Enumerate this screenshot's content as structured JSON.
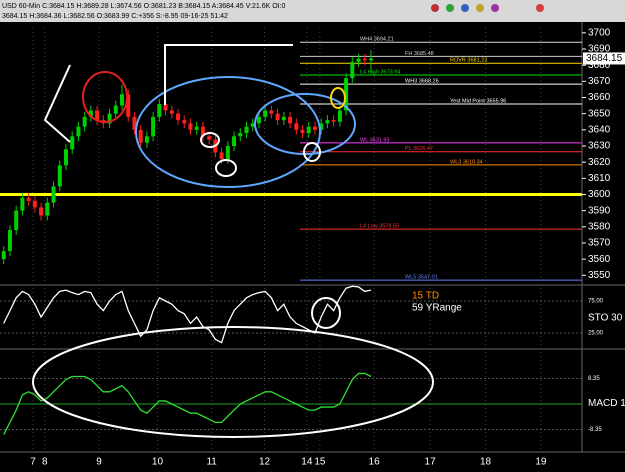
{
  "header": {
    "line1": "USD 60-Min  C:3684.15 H:3689.28 L:3674.56 O:3681.23 B:3684.15 A:3684.45 V:21.6K OI:0",
    "line2": "3684.15 H:3684.36 L:3682.56 O:3683.99 C:+356 S:-8.95 09-16-25 51:42"
  },
  "chart_data": [
    {
      "type": "candlestick",
      "open": [
        3560,
        3565,
        3578,
        3590,
        3598,
        3596,
        3592,
        3587,
        3595,
        3605,
        3618,
        3628,
        3636,
        3642,
        3648,
        3652,
        3646,
        3644,
        3650,
        3655,
        3662,
        3648,
        3640,
        3632,
        3636,
        3648,
        3656,
        3652,
        3650,
        3646,
        3644,
        3640,
        3642,
        3636,
        3634,
        3626,
        3622,
        3630,
        3636,
        3638,
        3642,
        3644,
        3648,
        3652,
        3650,
        3646,
        3648,
        3644,
        3640,
        3638,
        3642,
        3640,
        3644,
        3646,
        3645,
        3652,
        3672,
        3682,
        3684,
        3683
      ],
      "high": [
        3568,
        3581,
        3593,
        3601,
        3601,
        3599,
        3595,
        3598,
        3608,
        3621,
        3631,
        3639,
        3645,
        3651,
        3655,
        3655,
        3649,
        3653,
        3658,
        3668,
        3665,
        3651,
        3643,
        3639,
        3651,
        3659,
        3659,
        3655,
        3653,
        3649,
        3647,
        3645,
        3645,
        3639,
        3637,
        3629,
        3633,
        3639,
        3641,
        3645,
        3647,
        3651,
        3655,
        3655,
        3653,
        3651,
        3651,
        3647,
        3643,
        3645,
        3645,
        3647,
        3649,
        3649,
        3655,
        3675,
        3685,
        3687,
        3687,
        3689.28
      ],
      "low": [
        3557,
        3562,
        3575,
        3587,
        3593,
        3589,
        3584,
        3584,
        3592,
        3602,
        3615,
        3625,
        3633,
        3639,
        3645,
        3643,
        3641,
        3641,
        3647,
        3652,
        3645,
        3637,
        3629,
        3629,
        3633,
        3645,
        3649,
        3647,
        3643,
        3641,
        3637,
        3637,
        3633,
        3631,
        3623,
        3619,
        3619,
        3627,
        3633,
        3635,
        3639,
        3641,
        3645,
        3647,
        3643,
        3643,
        3641,
        3637,
        3635,
        3635,
        3637,
        3637,
        3641,
        3642,
        3642,
        3649,
        3669,
        3679,
        3680,
        3674.56
      ],
      "close": [
        3565,
        3578,
        3590,
        3598,
        3596,
        3592,
        3587,
        3595,
        3605,
        3618,
        3628,
        3636,
        3642,
        3648,
        3652,
        3646,
        3644,
        3650,
        3655,
        3662,
        3648,
        3640,
        3632,
        3636,
        3648,
        3656,
        3652,
        3650,
        3646,
        3644,
        3640,
        3642,
        3636,
        3634,
        3626,
        3622,
        3630,
        3636,
        3638,
        3642,
        3644,
        3648,
        3652,
        3650,
        3646,
        3648,
        3644,
        3640,
        3638,
        3642,
        3640,
        3644,
        3646,
        3645,
        3652,
        3672,
        3682,
        3684,
        3683,
        3684.15
      ],
      "up_color": "#00d000",
      "down_color": "#ff2020",
      "xlim": [
        -0.6,
        92.9
      ],
      "xticks": [
        {
          "value": 4.7,
          "label": "7"
        },
        {
          "value": 6.6,
          "label": "8"
        },
        {
          "value": 15.3,
          "label": "9"
        },
        {
          "value": 24.7,
          "label": "10"
        },
        {
          "value": 33.4,
          "label": "11"
        },
        {
          "value": 41.9,
          "label": "12"
        },
        {
          "value": 48.7,
          "label": "14"
        },
        {
          "value": 50.8,
          "label": "15"
        },
        {
          "value": 59.5,
          "label": "16"
        },
        {
          "value": 68.5,
          "label": "17"
        },
        {
          "value": 77.4,
          "label": "18"
        },
        {
          "value": 86.3,
          "label": "19"
        }
      ],
      "ylim": [
        3544,
        3703
      ],
      "yticks": [
        3550,
        3560,
        3570,
        3580,
        3590,
        3600,
        3610,
        3620,
        3630,
        3640,
        3650,
        3660,
        3670,
        3680,
        3690,
        3700
      ],
      "grid": true,
      "support_line": {
        "value": 3600,
        "color": "#ffff00"
      },
      "levels": [
        {
          "label": "WH4 3694.21",
          "value": 3694.21,
          "color": "#dddddd"
        },
        {
          "label": "FH 3685.48",
          "value": 3685.48,
          "color": "#cccccc"
        },
        {
          "label": "ROVR 3681.23",
          "value": 3681.23,
          "color": "#ffd700"
        },
        {
          "label": "L4 High 3673.94",
          "value": 3673.94,
          "color": "#00e000"
        },
        {
          "label": "WH3 3668.26",
          "value": 3668.26,
          "color": "#ffffff"
        },
        {
          "label": "Yest Mid Point 3655.96",
          "value": 3655.96,
          "color": "#ffffff"
        },
        {
          "label": "WL 3631.93",
          "value": 3631.93,
          "color": "#ff40ff"
        },
        {
          "label": "PL 3626.47",
          "value": 3626.47,
          "color": "#ff3030"
        },
        {
          "label": "WL3 3618.34",
          "value": 3618.34,
          "color": "#ff8c00"
        },
        {
          "label": "L4 Low 3578.55",
          "value": 3578.55,
          "color": "#ff3030"
        },
        {
          "label": "WL5 3547.01",
          "value": 3547.01,
          "color": "#6080ff"
        }
      ]
    },
    {
      "type": "line",
      "label": "STO 30",
      "notes": [
        "15 TD",
        "59 YRange"
      ],
      "values": [
        40,
        60,
        80,
        90,
        85,
        70,
        50,
        65,
        80,
        90,
        92,
        88,
        85,
        90,
        88,
        70,
        60,
        75,
        85,
        90,
        60,
        40,
        20,
        30,
        60,
        80,
        75,
        70,
        60,
        55,
        40,
        50,
        35,
        30,
        15,
        10,
        40,
        60,
        70,
        80,
        85,
        88,
        90,
        80,
        60,
        70,
        50,
        40,
        35,
        30,
        25,
        50,
        70,
        60,
        80,
        95,
        98,
        97,
        90,
        92
      ],
      "color": "#ffffff",
      "ylim": [
        0,
        100
      ],
      "yticks": [
        {
          "value": 25,
          "label": "25.00"
        },
        {
          "value": 75,
          "label": "75.00"
        }
      ]
    },
    {
      "type": "line",
      "label": "MACD 1",
      "values": [
        -10,
        -6,
        -2,
        3,
        4,
        3,
        1,
        2,
        4,
        6,
        8,
        9,
        9,
        9,
        8,
        6,
        4,
        4,
        5,
        6,
        4,
        1,
        -2,
        -3,
        -1,
        1,
        1,
        0,
        -1,
        -2,
        -3,
        -3,
        -4,
        -5,
        -6,
        -6,
        -4,
        -2,
        0,
        1,
        2,
        3,
        4,
        4,
        3,
        2,
        1,
        0,
        -1,
        -2,
        -2,
        -1,
        -1,
        -1,
        0,
        4,
        8,
        10,
        10,
        9
      ],
      "color": "#30e030",
      "ylim": [
        -15.7,
        18
      ],
      "yticks": [
        -8.35,
        8.35
      ]
    }
  ]
}
